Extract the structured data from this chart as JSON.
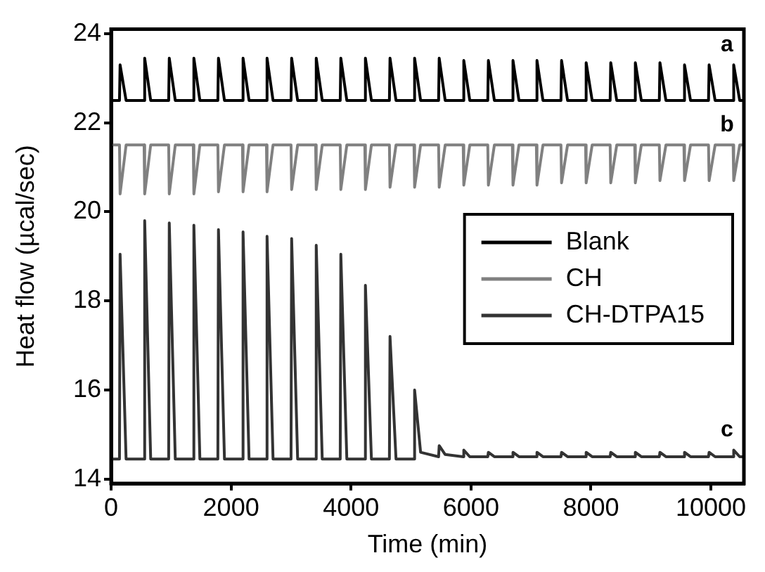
{
  "chart_data": {
    "type": "line",
    "xlabel": "Time (min)",
    "ylabel": "Heat flow (µcal/sec)",
    "x": [
      0,
      140,
      150,
      250,
      550,
      560,
      660,
      960,
      970,
      1070,
      1370,
      1380,
      1480,
      1780,
      1790,
      1890,
      2190,
      2200,
      2300,
      2590,
      2600,
      2700,
      3000,
      3010,
      3110,
      3410,
      3420,
      3520,
      3820,
      3830,
      3930,
      4230,
      4240,
      4340,
      4640,
      4650,
      4750,
      5050,
      5060,
      5160,
      5460,
      5470,
      5570,
      5870,
      5880,
      5980,
      6280,
      6290,
      6390,
      6690,
      6700,
      6800,
      7090,
      7100,
      7200,
      7500,
      7510,
      7610,
      7910,
      7920,
      8020,
      8320,
      8330,
      8430,
      8730,
      8740,
      8840,
      9140,
      9150,
      9250,
      9550,
      9560,
      9660,
      9960,
      9970,
      10070,
      10370,
      10380,
      10480,
      10550
    ],
    "series": [
      {
        "name": "Blank",
        "color": "#000000",
        "values": [
          22.5,
          22.5,
          23.3,
          22.5,
          22.5,
          23.45,
          22.5,
          22.5,
          23.45,
          22.5,
          22.5,
          23.45,
          22.5,
          22.5,
          23.45,
          22.5,
          22.5,
          23.45,
          22.5,
          22.5,
          23.45,
          22.5,
          22.5,
          23.45,
          22.5,
          22.5,
          23.45,
          22.5,
          22.5,
          23.45,
          22.5,
          22.5,
          23.45,
          22.5,
          22.5,
          23.45,
          22.5,
          22.5,
          23.45,
          22.5,
          22.5,
          23.45,
          22.5,
          22.5,
          23.4,
          22.5,
          22.5,
          23.4,
          22.5,
          22.5,
          23.4,
          22.5,
          22.5,
          23.4,
          22.5,
          22.5,
          23.4,
          22.5,
          22.5,
          23.35,
          22.5,
          22.5,
          23.35,
          22.5,
          22.5,
          23.35,
          22.5,
          22.5,
          23.35,
          22.5,
          22.5,
          23.3,
          22.5,
          22.5,
          23.3,
          22.5,
          22.5,
          23.3,
          22.5,
          22.5
        ]
      },
      {
        "name": "CH",
        "color": "#808080",
        "values": [
          21.5,
          21.5,
          20.4,
          21.5,
          21.5,
          20.4,
          21.5,
          21.5,
          20.4,
          21.5,
          21.5,
          20.4,
          21.5,
          21.5,
          20.45,
          21.5,
          21.5,
          20.45,
          21.5,
          21.5,
          20.45,
          21.5,
          21.5,
          20.5,
          21.5,
          21.5,
          20.5,
          21.5,
          21.5,
          20.5,
          21.5,
          21.5,
          20.5,
          21.5,
          21.5,
          20.55,
          21.5,
          21.5,
          20.55,
          21.5,
          21.5,
          20.55,
          21.5,
          21.5,
          20.6,
          21.5,
          21.5,
          20.6,
          21.5,
          21.5,
          20.6,
          21.5,
          21.5,
          20.6,
          21.5,
          21.5,
          20.65,
          21.5,
          21.5,
          20.65,
          21.5,
          21.5,
          20.65,
          21.5,
          21.5,
          20.65,
          21.5,
          21.5,
          20.7,
          21.5,
          21.5,
          20.7,
          21.5,
          21.5,
          20.7,
          21.5,
          21.5,
          20.7,
          21.5,
          21.5
        ]
      },
      {
        "name": "CH-DTPA15",
        "color": "#333333",
        "values": [
          14.45,
          14.45,
          19.05,
          14.45,
          14.45,
          19.8,
          14.45,
          14.45,
          19.75,
          14.45,
          14.45,
          19.7,
          14.45,
          14.45,
          19.6,
          14.45,
          14.45,
          19.55,
          14.45,
          14.45,
          19.45,
          14.45,
          14.45,
          19.4,
          14.45,
          14.45,
          19.25,
          14.45,
          14.45,
          19.05,
          14.45,
          14.45,
          18.35,
          14.45,
          14.45,
          17.2,
          14.45,
          14.45,
          16.0,
          14.6,
          14.5,
          14.75,
          14.55,
          14.5,
          14.65,
          14.5,
          14.5,
          14.6,
          14.5,
          14.5,
          14.6,
          14.5,
          14.5,
          14.6,
          14.5,
          14.5,
          14.6,
          14.5,
          14.5,
          14.6,
          14.5,
          14.5,
          14.6,
          14.5,
          14.5,
          14.6,
          14.5,
          14.5,
          14.6,
          14.5,
          14.5,
          14.6,
          14.5,
          14.5,
          14.6,
          14.5,
          14.5,
          14.65,
          14.5,
          14.5
        ]
      }
    ],
    "xlim": [
      0,
      10550
    ],
    "xticks": [
      0,
      2000,
      4000,
      6000,
      8000,
      10000
    ],
    "ylim": [
      13.9,
      24.1
    ],
    "yticks": [
      14,
      16,
      18,
      20,
      22,
      24
    ],
    "grid": false,
    "legend": "right",
    "marker": "none",
    "line_style": "solid",
    "annotations": [
      "a",
      "b",
      "c"
    ]
  }
}
